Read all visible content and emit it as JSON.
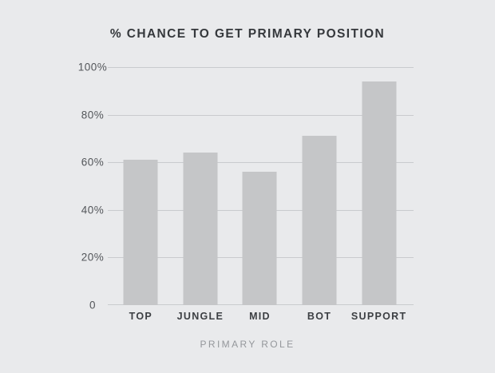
{
  "chart_data": {
    "type": "bar",
    "title": "% CHANCE TO GET PRIMARY POSITION",
    "xlabel": "PRIMARY ROLE",
    "ylabel": "",
    "categories": [
      "TOP",
      "JUNGLE",
      "MID",
      "BOT",
      "SUPPORT"
    ],
    "values": [
      61,
      64,
      56,
      71,
      94
    ],
    "y_ticks": [
      "100%",
      "80%",
      "60%",
      "40%",
      "20%",
      "0"
    ],
    "ylim": [
      0,
      100
    ],
    "grid": "horizontal gridlines every 20%",
    "legend": "none",
    "colors": {
      "background": "#e9eaec",
      "bar": "#c5c6c8",
      "gridline": "#c9cbce",
      "title_text": "#35383c",
      "tick_text": "#53565a",
      "category_text": "#3c3f43",
      "axis_title_text": "#94979b"
    }
  }
}
